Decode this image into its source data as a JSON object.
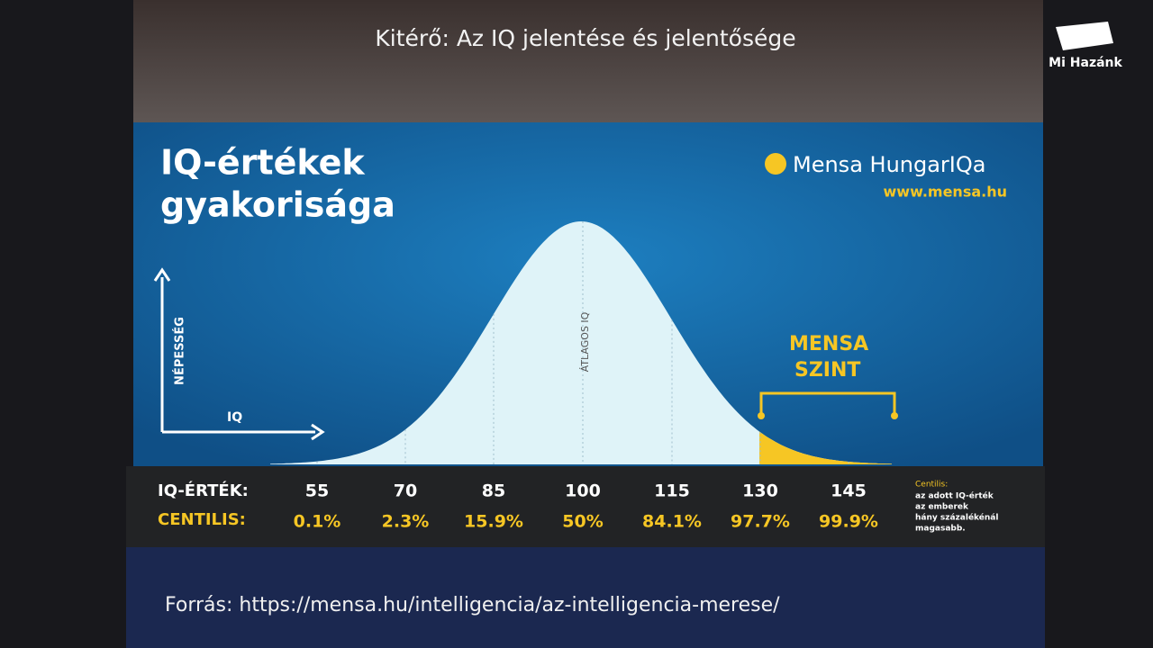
{
  "slide": {
    "title": "Kitérő: Az IQ jelentése és jelentősége",
    "source": "Forrás: https://mensa.hu/intelligencia/az-intelligencia-merese/"
  },
  "logo": {
    "text": "Mi Hazánk"
  },
  "infographic": {
    "title_lines": [
      "IQ-értékek",
      "gyakorisága"
    ],
    "brand": "Mensa HungarIQa",
    "url": "www.mensa.hu",
    "y_axis_label": "NÉPESSÉG",
    "x_axis_label": "IQ",
    "mean_label": "ÁTLAGOS IQ",
    "mensa_label_lines": [
      "MENSA",
      "SZINT"
    ]
  },
  "table": {
    "row_labels": [
      "IQ-ÉRTÉK:",
      "CENTILIS:"
    ],
    "iq_values": [
      "55",
      "70",
      "85",
      "100",
      "115",
      "130",
      "145"
    ],
    "centiles": [
      "0.1%",
      "2.3%",
      "15.9%",
      "50%",
      "84.1%",
      "97.7%",
      "99.9%"
    ],
    "note_title": "Centilis:",
    "note_lines": [
      "az adott IQ-érték",
      "az emberek",
      "hány százalékénál",
      "magasabb."
    ]
  }
}
